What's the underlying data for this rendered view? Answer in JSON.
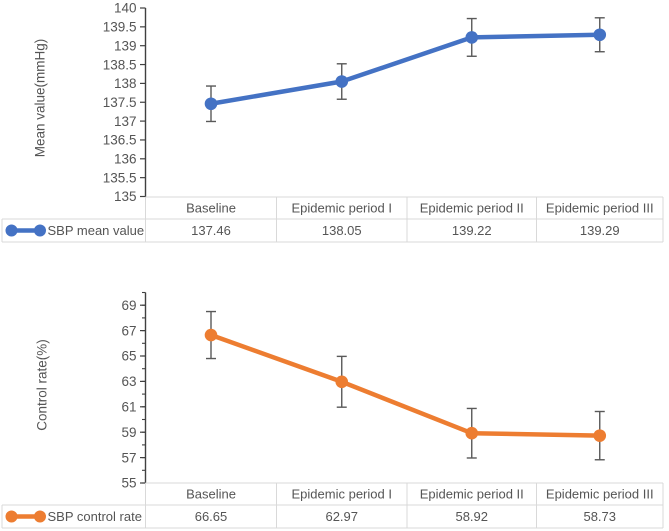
{
  "background": "#ffffff",
  "styles": {
    "axis_color": "#404040",
    "error_bar_color": "#595959",
    "table_border_color": "#d9d9d9",
    "text_color": "#555555",
    "series1_color": "#4472C4",
    "series2_color": "#ED7D31"
  },
  "chart_data": [
    {
      "type": "line",
      "title": "",
      "xlabel": "",
      "ylabel": "Mean value(mmHg)",
      "categories": [
        "Baseline",
        "Epidemic period I",
        "Epidemic period II",
        "Epidemic period III"
      ],
      "series": [
        {
          "name": "SBP mean value",
          "values": [
            137.46,
            138.05,
            139.22,
            139.29
          ],
          "value_labels": [
            "137.46",
            "138.05",
            "139.22",
            "139.29"
          ],
          "errors": [
            0.47,
            0.47,
            0.5,
            0.45
          ],
          "color": "#4472C4"
        }
      ],
      "ylim": [
        135,
        140
      ],
      "ytick_values": [
        140,
        139.5,
        139,
        138.5,
        138,
        137.5,
        137,
        136.5,
        136,
        135.5,
        135
      ],
      "ytick_labels": [
        "140",
        "139.5",
        "139",
        "138.5",
        "138",
        "137.5",
        "137",
        "136.5",
        "136",
        "135.5",
        "135"
      ],
      "minor_tick_step": null,
      "grid": false,
      "legend_position": "data-table-left",
      "data_table": true
    },
    {
      "type": "line",
      "title": "",
      "xlabel": "",
      "ylabel": "Control rate(%)",
      "categories": [
        "Baseline",
        "Epidemic period I",
        "Epidemic period II",
        "Epidemic period III"
      ],
      "series": [
        {
          "name": "SBP control rate",
          "values": [
            66.65,
            62.97,
            58.92,
            58.73
          ],
          "value_labels": [
            "66.65",
            "62.97",
            "58.92",
            "58.73"
          ],
          "errors": [
            1.85,
            2.0,
            1.95,
            1.9
          ],
          "color": "#ED7D31"
        }
      ],
      "ylim": [
        55,
        70
      ],
      "ytick_values": [
        69,
        67,
        65,
        63,
        61,
        59,
        57,
        55
      ],
      "ytick_labels": [
        "69",
        "67",
        "65",
        "63",
        "61",
        "59",
        "57",
        "55"
      ],
      "minor_tick_step": 1,
      "grid": false,
      "legend_position": "data-table-left",
      "data_table": true
    }
  ]
}
